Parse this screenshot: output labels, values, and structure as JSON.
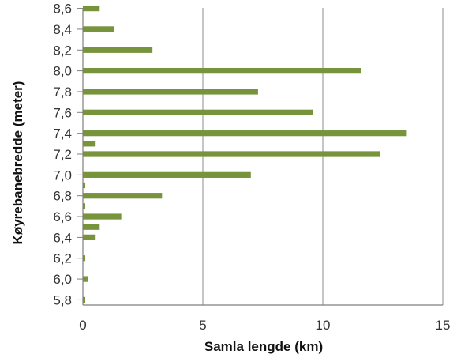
{
  "chart_data": {
    "type": "bar",
    "orientation": "horizontal",
    "xlabel": "Samla lengde (km)",
    "ylabel": "Køyrebanebredde (meter)",
    "xlim": [
      0,
      15
    ],
    "x_ticks": [
      "0",
      "5",
      "10",
      "15"
    ],
    "grid": "vertical",
    "bar_color": "#77933c",
    "categories": [
      "5,8",
      "5,9",
      "6,0",
      "6,1",
      "6,2",
      "6,3",
      "6,4",
      "6,5",
      "6,6",
      "6,7",
      "6,8",
      "6,9",
      "7,0",
      "7,1",
      "7,2",
      "7,3",
      "7,4",
      "7,5",
      "7,6",
      "7,7",
      "7,8",
      "7,9",
      "8,0",
      "8,1",
      "8,2",
      "8,3",
      "8,4",
      "8,5",
      "8,6"
    ],
    "y_tick_labels": [
      "5,8",
      "6,0",
      "6,2",
      "6,4",
      "6,6",
      "6,8",
      "7,0",
      "7,2",
      "7,4",
      "7,6",
      "7,8",
      "8,0",
      "8,2",
      "8,4",
      "8,6"
    ],
    "values": [
      0.1,
      0,
      0.2,
      0,
      0.1,
      0,
      0.5,
      0.7,
      1.6,
      0.1,
      3.3,
      0.1,
      7.0,
      0,
      12.4,
      0.5,
      13.5,
      0,
      9.6,
      0,
      7.3,
      0,
      11.6,
      0,
      2.9,
      0,
      1.3,
      0,
      0.7
    ]
  }
}
